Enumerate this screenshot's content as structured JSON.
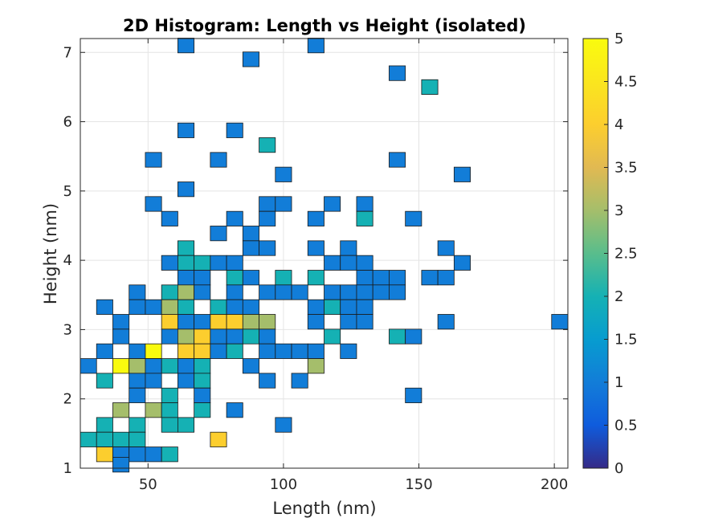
{
  "chart_data": {
    "type": "heatmap",
    "title": "2D Histogram: Length vs Height (isolated)",
    "xlabel": "Length (nm)",
    "ylabel": "Height (nm)",
    "xlim": [
      25,
      205
    ],
    "ylim": [
      1,
      7.2
    ],
    "xticks": [
      50,
      100,
      150,
      200
    ],
    "yticks": [
      1,
      2,
      3,
      4,
      5,
      6,
      7
    ],
    "grid": true,
    "colorbar": {
      "min": 0,
      "max": 5,
      "ticks": [
        0,
        0.5,
        1,
        1.5,
        2,
        2.5,
        3,
        3.5,
        4,
        4.5,
        5
      ],
      "tick_labels": [
        "0",
        "0.5",
        "1",
        "1.5",
        "2",
        "2.5",
        "3",
        "3.5",
        "4",
        "4.5",
        "5"
      ],
      "colormap": "parula"
    },
    "bin_width_x": 6,
    "bin_height_y": 0.2125,
    "cells": [
      {
        "x": 64,
        "y": 7.1,
        "count": 1
      },
      {
        "x": 112,
        "y": 7.1,
        "count": 1
      },
      {
        "x": 88,
        "y": 6.9,
        "count": 1
      },
      {
        "x": 142,
        "y": 6.7,
        "count": 1
      },
      {
        "x": 154,
        "y": 6.5,
        "count": 2
      },
      {
        "x": 64,
        "y": 5.875,
        "count": 1
      },
      {
        "x": 82,
        "y": 5.875,
        "count": 1
      },
      {
        "x": 94,
        "y": 5.663,
        "count": 2
      },
      {
        "x": 52,
        "y": 5.45,
        "count": 1
      },
      {
        "x": 76,
        "y": 5.45,
        "count": 1
      },
      {
        "x": 142,
        "y": 5.45,
        "count": 1
      },
      {
        "x": 100,
        "y": 5.238,
        "count": 1
      },
      {
        "x": 166,
        "y": 5.238,
        "count": 1
      },
      {
        "x": 64,
        "y": 5.025,
        "count": 1
      },
      {
        "x": 52,
        "y": 4.813,
        "count": 1
      },
      {
        "x": 94,
        "y": 4.813,
        "count": 1
      },
      {
        "x": 100,
        "y": 4.813,
        "count": 1
      },
      {
        "x": 118,
        "y": 4.813,
        "count": 1
      },
      {
        "x": 130,
        "y": 4.813,
        "count": 1
      },
      {
        "x": 58,
        "y": 4.6,
        "count": 1
      },
      {
        "x": 82,
        "y": 4.6,
        "count": 1
      },
      {
        "x": 94,
        "y": 4.6,
        "count": 1
      },
      {
        "x": 112,
        "y": 4.6,
        "count": 1
      },
      {
        "x": 130,
        "y": 4.6,
        "count": 2
      },
      {
        "x": 148,
        "y": 4.6,
        "count": 1
      },
      {
        "x": 76,
        "y": 4.388,
        "count": 1
      },
      {
        "x": 88,
        "y": 4.388,
        "count": 1
      },
      {
        "x": 64,
        "y": 4.175,
        "count": 2
      },
      {
        "x": 88,
        "y": 4.175,
        "count": 1
      },
      {
        "x": 94,
        "y": 4.175,
        "count": 1
      },
      {
        "x": 112,
        "y": 4.175,
        "count": 1
      },
      {
        "x": 124,
        "y": 4.175,
        "count": 1
      },
      {
        "x": 160,
        "y": 4.175,
        "count": 1
      },
      {
        "x": 58,
        "y": 3.963,
        "count": 1
      },
      {
        "x": 64,
        "y": 3.963,
        "count": 2
      },
      {
        "x": 70,
        "y": 3.963,
        "count": 2
      },
      {
        "x": 76,
        "y": 3.963,
        "count": 1
      },
      {
        "x": 82,
        "y": 3.963,
        "count": 1
      },
      {
        "x": 118,
        "y": 3.963,
        "count": 1
      },
      {
        "x": 124,
        "y": 3.963,
        "count": 1
      },
      {
        "x": 130,
        "y": 3.963,
        "count": 1
      },
      {
        "x": 166,
        "y": 3.963,
        "count": 1
      },
      {
        "x": 64,
        "y": 3.75,
        "count": 1
      },
      {
        "x": 70,
        "y": 3.75,
        "count": 1
      },
      {
        "x": 82,
        "y": 3.75,
        "count": 2
      },
      {
        "x": 88,
        "y": 3.75,
        "count": 1
      },
      {
        "x": 100,
        "y": 3.75,
        "count": 2
      },
      {
        "x": 112,
        "y": 3.75,
        "count": 2
      },
      {
        "x": 130,
        "y": 3.75,
        "count": 1
      },
      {
        "x": 136,
        "y": 3.75,
        "count": 1
      },
      {
        "x": 142,
        "y": 3.75,
        "count": 1
      },
      {
        "x": 154,
        "y": 3.75,
        "count": 1
      },
      {
        "x": 160,
        "y": 3.75,
        "count": 1
      },
      {
        "x": 46,
        "y": 3.538,
        "count": 1
      },
      {
        "x": 58,
        "y": 3.538,
        "count": 2
      },
      {
        "x": 64,
        "y": 3.538,
        "count": 3
      },
      {
        "x": 70,
        "y": 3.538,
        "count": 1
      },
      {
        "x": 82,
        "y": 3.538,
        "count": 1
      },
      {
        "x": 94,
        "y": 3.538,
        "count": 1
      },
      {
        "x": 100,
        "y": 3.538,
        "count": 1
      },
      {
        "x": 106,
        "y": 3.538,
        "count": 1
      },
      {
        "x": 118,
        "y": 3.538,
        "count": 1
      },
      {
        "x": 124,
        "y": 3.538,
        "count": 1
      },
      {
        "x": 130,
        "y": 3.538,
        "count": 1
      },
      {
        "x": 136,
        "y": 3.538,
        "count": 1
      },
      {
        "x": 142,
        "y": 3.538,
        "count": 1
      },
      {
        "x": 34,
        "y": 3.325,
        "count": 1
      },
      {
        "x": 46,
        "y": 3.325,
        "count": 1
      },
      {
        "x": 52,
        "y": 3.325,
        "count": 1
      },
      {
        "x": 58,
        "y": 3.325,
        "count": 3
      },
      {
        "x": 64,
        "y": 3.325,
        "count": 2
      },
      {
        "x": 76,
        "y": 3.325,
        "count": 2
      },
      {
        "x": 82,
        "y": 3.325,
        "count": 1
      },
      {
        "x": 88,
        "y": 3.325,
        "count": 1
      },
      {
        "x": 112,
        "y": 3.325,
        "count": 1
      },
      {
        "x": 118,
        "y": 3.325,
        "count": 2
      },
      {
        "x": 124,
        "y": 3.325,
        "count": 1
      },
      {
        "x": 130,
        "y": 3.325,
        "count": 1
      },
      {
        "x": 40,
        "y": 3.113,
        "count": 1
      },
      {
        "x": 58,
        "y": 3.113,
        "count": 4
      },
      {
        "x": 64,
        "y": 3.113,
        "count": 1
      },
      {
        "x": 70,
        "y": 3.113,
        "count": 1
      },
      {
        "x": 76,
        "y": 3.113,
        "count": 4
      },
      {
        "x": 82,
        "y": 3.113,
        "count": 4
      },
      {
        "x": 88,
        "y": 3.113,
        "count": 3
      },
      {
        "x": 94,
        "y": 3.113,
        "count": 3
      },
      {
        "x": 112,
        "y": 3.113,
        "count": 1
      },
      {
        "x": 124,
        "y": 3.113,
        "count": 1
      },
      {
        "x": 130,
        "y": 3.113,
        "count": 1
      },
      {
        "x": 160,
        "y": 3.113,
        "count": 1
      },
      {
        "x": 202,
        "y": 3.113,
        "count": 1
      },
      {
        "x": 40,
        "y": 2.9,
        "count": 1
      },
      {
        "x": 58,
        "y": 2.9,
        "count": 1
      },
      {
        "x": 64,
        "y": 2.9,
        "count": 3
      },
      {
        "x": 70,
        "y": 2.9,
        "count": 4
      },
      {
        "x": 76,
        "y": 2.9,
        "count": 1
      },
      {
        "x": 82,
        "y": 2.9,
        "count": 1
      },
      {
        "x": 88,
        "y": 2.9,
        "count": 2
      },
      {
        "x": 94,
        "y": 2.9,
        "count": 1
      },
      {
        "x": 118,
        "y": 2.9,
        "count": 2
      },
      {
        "x": 142,
        "y": 2.9,
        "count": 2
      },
      {
        "x": 148,
        "y": 2.9,
        "count": 1
      },
      {
        "x": 34,
        "y": 2.688,
        "count": 1
      },
      {
        "x": 46,
        "y": 2.688,
        "count": 1
      },
      {
        "x": 52,
        "y": 2.688,
        "count": 5
      },
      {
        "x": 64,
        "y": 2.688,
        "count": 4
      },
      {
        "x": 70,
        "y": 2.688,
        "count": 4
      },
      {
        "x": 76,
        "y": 2.688,
        "count": 1
      },
      {
        "x": 82,
        "y": 2.688,
        "count": 2
      },
      {
        "x": 94,
        "y": 2.688,
        "count": 1
      },
      {
        "x": 100,
        "y": 2.688,
        "count": 1
      },
      {
        "x": 106,
        "y": 2.688,
        "count": 1
      },
      {
        "x": 112,
        "y": 2.688,
        "count": 1
      },
      {
        "x": 124,
        "y": 2.688,
        "count": 1
      },
      {
        "x": 28,
        "y": 2.475,
        "count": 1
      },
      {
        "x": 40,
        "y": 2.475,
        "count": 5
      },
      {
        "x": 46,
        "y": 2.475,
        "count": 3
      },
      {
        "x": 52,
        "y": 2.475,
        "count": 1
      },
      {
        "x": 58,
        "y": 2.475,
        "count": 2
      },
      {
        "x": 64,
        "y": 2.475,
        "count": 1
      },
      {
        "x": 70,
        "y": 2.475,
        "count": 2
      },
      {
        "x": 88,
        "y": 2.475,
        "count": 1
      },
      {
        "x": 112,
        "y": 2.475,
        "count": 3
      },
      {
        "x": 34,
        "y": 2.263,
        "count": 2
      },
      {
        "x": 46,
        "y": 2.263,
        "count": 1
      },
      {
        "x": 52,
        "y": 2.263,
        "count": 1
      },
      {
        "x": 64,
        "y": 2.263,
        "count": 1
      },
      {
        "x": 70,
        "y": 2.263,
        "count": 2
      },
      {
        "x": 94,
        "y": 2.263,
        "count": 1
      },
      {
        "x": 106,
        "y": 2.263,
        "count": 1
      },
      {
        "x": 46,
        "y": 2.05,
        "count": 1
      },
      {
        "x": 58,
        "y": 2.05,
        "count": 2
      },
      {
        "x": 70,
        "y": 2.05,
        "count": 1
      },
      {
        "x": 148,
        "y": 2.05,
        "count": 1
      },
      {
        "x": 40,
        "y": 1.838,
        "count": 3
      },
      {
        "x": 52,
        "y": 1.838,
        "count": 3
      },
      {
        "x": 58,
        "y": 1.838,
        "count": 2
      },
      {
        "x": 70,
        "y": 1.838,
        "count": 2
      },
      {
        "x": 82,
        "y": 1.838,
        "count": 1
      },
      {
        "x": 34,
        "y": 1.625,
        "count": 2
      },
      {
        "x": 46,
        "y": 1.625,
        "count": 2
      },
      {
        "x": 58,
        "y": 1.625,
        "count": 2
      },
      {
        "x": 64,
        "y": 1.625,
        "count": 2
      },
      {
        "x": 100,
        "y": 1.625,
        "count": 1
      },
      {
        "x": 28,
        "y": 1.413,
        "count": 2
      },
      {
        "x": 34,
        "y": 1.413,
        "count": 2
      },
      {
        "x": 40,
        "y": 1.413,
        "count": 2
      },
      {
        "x": 46,
        "y": 1.413,
        "count": 2
      },
      {
        "x": 76,
        "y": 1.413,
        "count": 4
      },
      {
        "x": 34,
        "y": 1.2,
        "count": 4
      },
      {
        "x": 40,
        "y": 1.2,
        "count": 1
      },
      {
        "x": 46,
        "y": 1.2,
        "count": 1
      },
      {
        "x": 52,
        "y": 1.2,
        "count": 1
      },
      {
        "x": 58,
        "y": 1.2,
        "count": 2
      },
      {
        "x": 40,
        "y": 1.05,
        "count": 1
      }
    ]
  }
}
